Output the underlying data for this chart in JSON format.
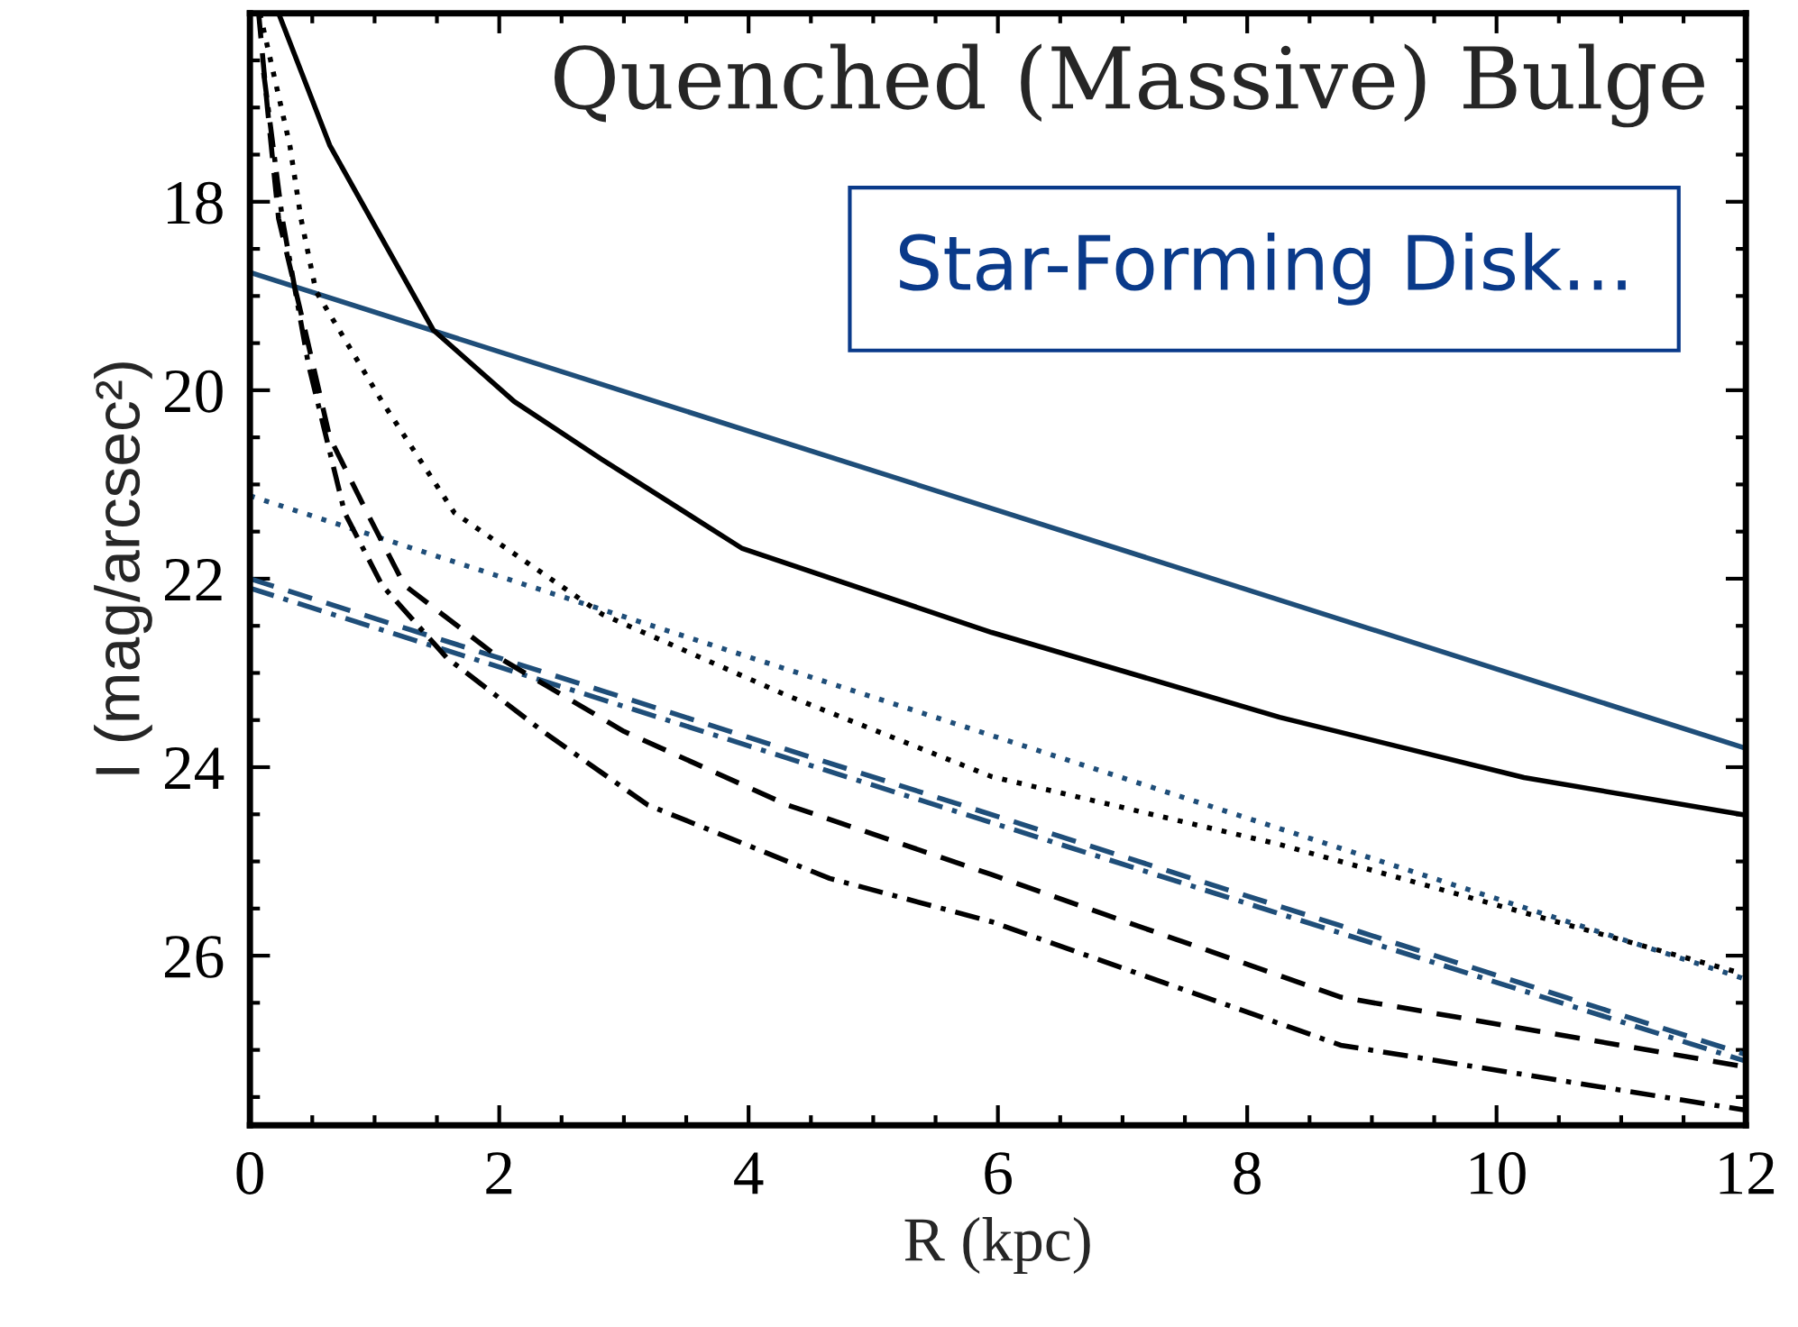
{
  "chart_data": {
    "type": "line",
    "xlabel": "R (kpc)",
    "ylabel": "I (mag/arcsec²)",
    "xlim": [
      0,
      12
    ],
    "xticks": [
      0,
      2,
      4,
      6,
      8,
      10,
      12
    ],
    "ylim": [
      27.8,
      16.0
    ],
    "yticks": [
      18,
      20,
      22,
      24,
      26
    ],
    "grid": false,
    "marker": "none",
    "annotations": [
      "Quenched (Massive) Bulge",
      "Star-Forming Disk..."
    ],
    "series": [
      {
        "color": "#1f4e79",
        "line_style": "solid",
        "x": [
          0,
          12
        ],
        "values": [
          18.75,
          23.8
        ]
      },
      {
        "color": "#000000",
        "line_style": "solid",
        "x": [
          0.23,
          0.64,
          0.97,
          1.47,
          2.12,
          2.83,
          3.95,
          5.95,
          8.26,
          10.22,
          12
        ],
        "values": [
          16.0,
          17.4,
          18.18,
          19.36,
          20.12,
          20.74,
          21.68,
          22.57,
          23.47,
          24.11,
          24.51
        ]
      },
      {
        "color": "#000000",
        "line_style": "dotted",
        "x": [
          0.08,
          0.32,
          0.41,
          0.53,
          1.06,
          1.64,
          2.83,
          4.31,
          5.95,
          8.26,
          12
        ],
        "values": [
          16.0,
          17.4,
          18.18,
          18.95,
          20.12,
          21.3,
          22.38,
          23.24,
          24.1,
          24.82,
          26.2
        ]
      },
      {
        "color": "#1f4e79",
        "line_style": "dotted",
        "x": [
          0,
          12
        ],
        "values": [
          21.12,
          26.25
        ]
      },
      {
        "color": "#1f4e79",
        "line_style": "dashed",
        "x": [
          0,
          12
        ],
        "values": [
          22.0,
          27.05
        ]
      },
      {
        "color": "#1f4e79",
        "line_style": "dashdot",
        "x": [
          0,
          12
        ],
        "values": [
          22.1,
          27.12
        ]
      },
      {
        "color": "#000000",
        "line_style": "dashed",
        "x": [
          0.07,
          0.14,
          0.23,
          0.44,
          0.64,
          0.94,
          1.24,
          2.0,
          3.0,
          4.31,
          5.95,
          8.75,
          12
        ],
        "values": [
          16.0,
          17.0,
          18.18,
          19.35,
          20.5,
          21.3,
          22.07,
          22.84,
          23.62,
          24.4,
          25.14,
          26.44,
          27.18
        ]
      },
      {
        "color": "#000000",
        "line_style": "dashdot",
        "x": [
          0.11,
          0.26,
          0.47,
          0.76,
          1.06,
          1.58,
          2.35,
          3.19,
          4.65,
          5.95,
          8.75,
          12
        ],
        "values": [
          16.63,
          18.18,
          19.73,
          21.3,
          22.07,
          22.84,
          23.62,
          24.4,
          25.18,
          25.64,
          26.95,
          27.64
        ]
      }
    ]
  }
}
